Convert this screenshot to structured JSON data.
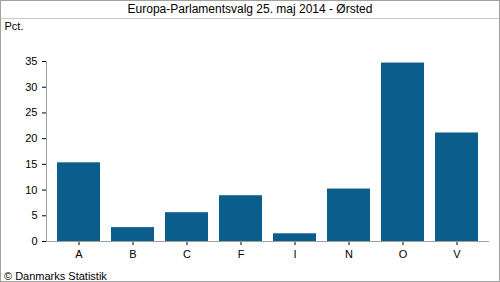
{
  "chart_data": {
    "type": "bar",
    "title": "Europa-Parlamentsvalg 25. maj 2014 - Ørsted",
    "y_label": "Pct.",
    "caption": "© Danmarks Statistik",
    "categories": [
      "A",
      "B",
      "C",
      "F",
      "I",
      "N",
      "O",
      "V"
    ],
    "values": [
      15.3,
      2.7,
      5.6,
      8.9,
      1.5,
      10.2,
      34.7,
      21.1
    ],
    "color": "#0b5d8c",
    "ylim": [
      0,
      35
    ],
    "yticks": [
      0,
      5,
      10,
      15,
      20,
      25,
      30,
      35
    ],
    "grid": false
  }
}
